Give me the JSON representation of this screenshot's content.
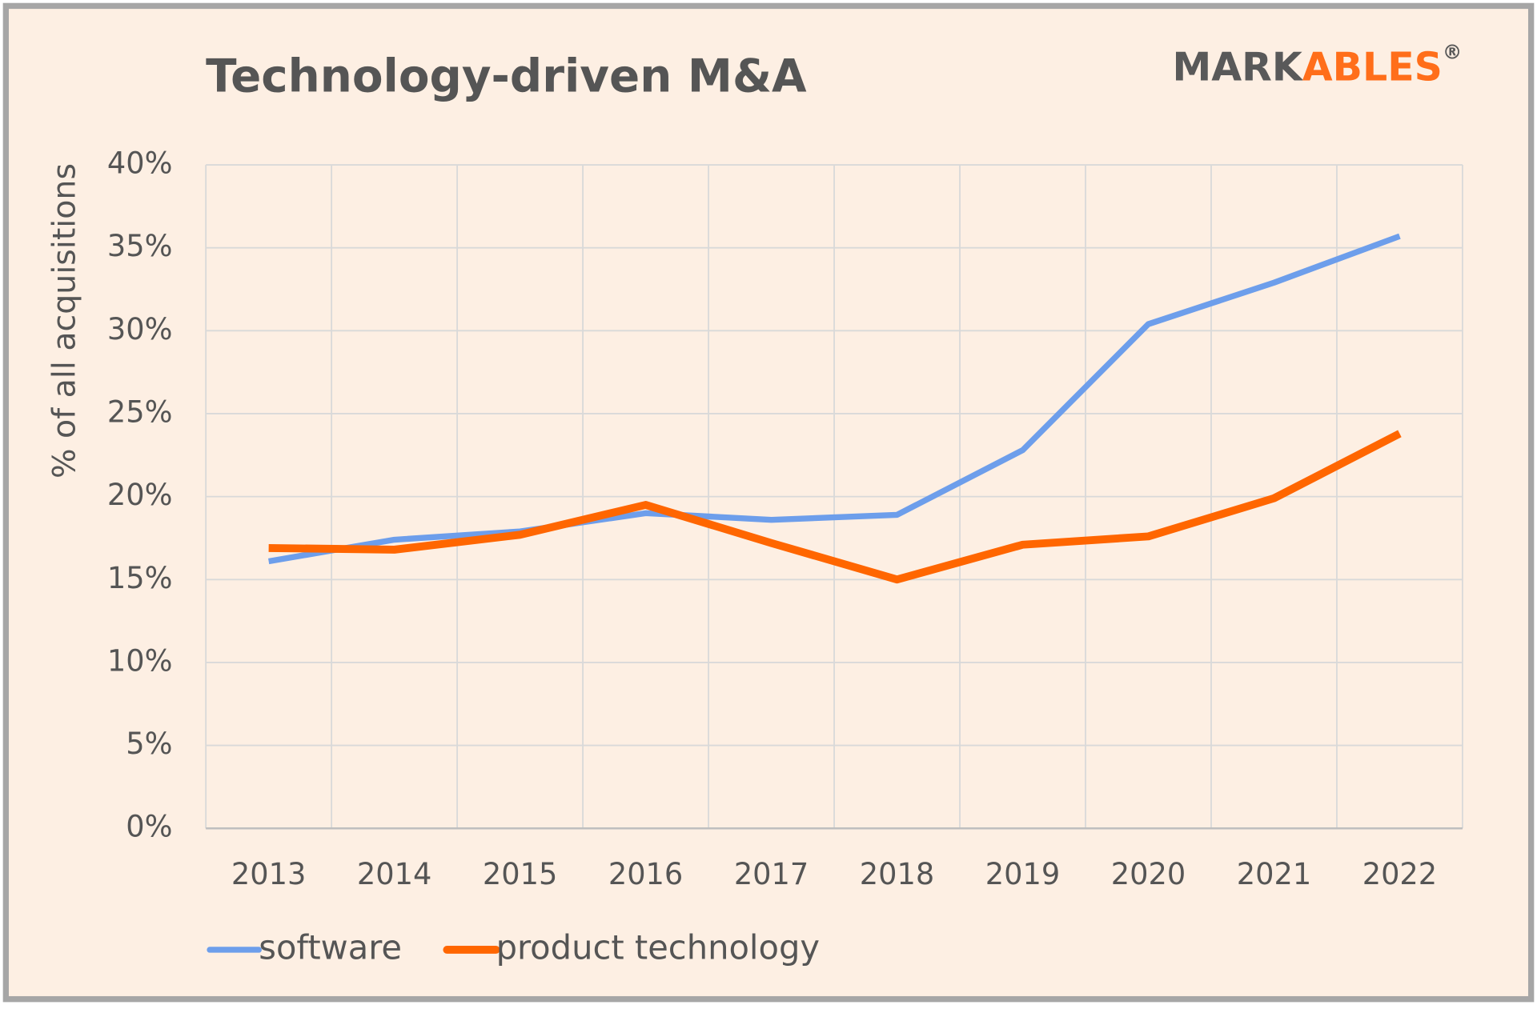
{
  "chart_data": {
    "type": "line",
    "title": "Technology-driven M&A",
    "logo": {
      "dark": "MARK",
      "accent": "ABLES",
      "mark": "®"
    },
    "y_label": "% of all acquisitions",
    "categories": [
      "2013",
      "2014",
      "2015",
      "2016",
      "2017",
      "2018",
      "2019",
      "2020",
      "2021",
      "2022"
    ],
    "series": [
      {
        "name": "software",
        "color": "#6d9eeb",
        "values": [
          16.1,
          17.4,
          17.9,
          19.0,
          18.6,
          18.9,
          22.8,
          30.4,
          32.9,
          35.7
        ]
      },
      {
        "name": "product technology",
        "color": "#ff6600",
        "values": [
          16.9,
          16.8,
          17.7,
          19.5,
          17.2,
          15.0,
          17.1,
          17.6,
          19.9,
          23.8
        ]
      }
    ],
    "ylim": [
      0,
      40
    ],
    "yticks": [
      {
        "value": 0,
        "label": "0%"
      },
      {
        "value": 5,
        "label": "5%"
      },
      {
        "value": 10,
        "label": "10%"
      },
      {
        "value": 15,
        "label": "15%"
      },
      {
        "value": 20,
        "label": "20%"
      },
      {
        "value": 25,
        "label": "25%"
      },
      {
        "value": 30,
        "label": "30%"
      },
      {
        "value": 35,
        "label": "35%"
      },
      {
        "value": 40,
        "label": "40%"
      }
    ],
    "grid": true,
    "legend": "bottom-left"
  }
}
